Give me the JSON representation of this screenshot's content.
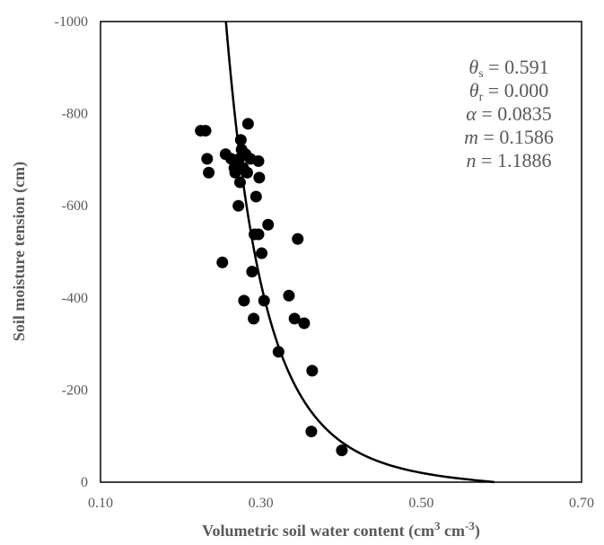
{
  "chart_data": {
    "type": "scatter",
    "title": "",
    "xlabel": "Volumetric soil water content (cm³ cm⁻³)",
    "xlabel_parts": {
      "main": "Volumetric soil water content (cm",
      "sup1": "3",
      "mid": " cm",
      "sup2": "-3",
      "end": ")"
    },
    "ylabel": "Soil moisture tension (cm)",
    "xlim": [
      0.1,
      0.7
    ],
    "ylim": [
      0,
      -1000
    ],
    "x_ticks": [
      "0.10",
      "0.30",
      "0.50",
      "0.70"
    ],
    "y_ticks": [
      "-1000",
      "-800",
      "-600",
      "-400",
      "-200",
      "0"
    ],
    "x_tick_values": [
      0.1,
      0.3,
      0.5,
      0.7
    ],
    "y_tick_values": [
      -1000,
      -800,
      -600,
      -400,
      -200,
      0
    ],
    "grid": false,
    "legend": "none",
    "points": [
      {
        "x": 0.225,
        "y": -763
      },
      {
        "x": 0.231,
        "y": -763
      },
      {
        "x": 0.233,
        "y": -702
      },
      {
        "x": 0.235,
        "y": -672
      },
      {
        "x": 0.252,
        "y": -477
      },
      {
        "x": 0.256,
        "y": -712
      },
      {
        "x": 0.263,
        "y": -702
      },
      {
        "x": 0.267,
        "y": -682
      },
      {
        "x": 0.268,
        "y": -672
      },
      {
        "x": 0.272,
        "y": -600
      },
      {
        "x": 0.273,
        "y": -702
      },
      {
        "x": 0.274,
        "y": -651
      },
      {
        "x": 0.275,
        "y": -743
      },
      {
        "x": 0.276,
        "y": -722
      },
      {
        "x": 0.278,
        "y": -682
      },
      {
        "x": 0.279,
        "y": -394
      },
      {
        "x": 0.281,
        "y": -712
      },
      {
        "x": 0.283,
        "y": -672
      },
      {
        "x": 0.284,
        "y": -778
      },
      {
        "x": 0.287,
        "y": -702
      },
      {
        "x": 0.289,
        "y": -457
      },
      {
        "x": 0.291,
        "y": -355
      },
      {
        "x": 0.292,
        "y": -538
      },
      {
        "x": 0.294,
        "y": -620
      },
      {
        "x": 0.297,
        "y": -538
      },
      {
        "x": 0.297,
        "y": -697
      },
      {
        "x": 0.298,
        "y": -661
      },
      {
        "x": 0.301,
        "y": -497
      },
      {
        "x": 0.304,
        "y": -394
      },
      {
        "x": 0.309,
        "y": -559
      },
      {
        "x": 0.322,
        "y": -283
      },
      {
        "x": 0.335,
        "y": -405
      },
      {
        "x": 0.342,
        "y": -355
      },
      {
        "x": 0.346,
        "y": -528
      },
      {
        "x": 0.354,
        "y": -345
      },
      {
        "x": 0.363,
        "y": -110
      },
      {
        "x": 0.364,
        "y": -242
      },
      {
        "x": 0.401,
        "y": -69
      }
    ],
    "fitted_curve": {
      "model": "van Genuchten",
      "theta_s": 0.591,
      "theta_r": 0.0,
      "alpha": 0.0835,
      "m": 0.1586,
      "n": 1.1886
    },
    "annotation": [
      {
        "symbol": "θ",
        "sub": "s",
        "text": " = 0.591"
      },
      {
        "symbol": "θ",
        "sub": "r",
        "text": " = 0.000"
      },
      {
        "symbol": "α",
        "sub": "",
        "text": " = 0.0835"
      },
      {
        "symbol": "m",
        "sub": "",
        "text": " = 0.1586"
      },
      {
        "symbol": "n",
        "sub": "",
        "text": " = 1.1886"
      }
    ]
  }
}
